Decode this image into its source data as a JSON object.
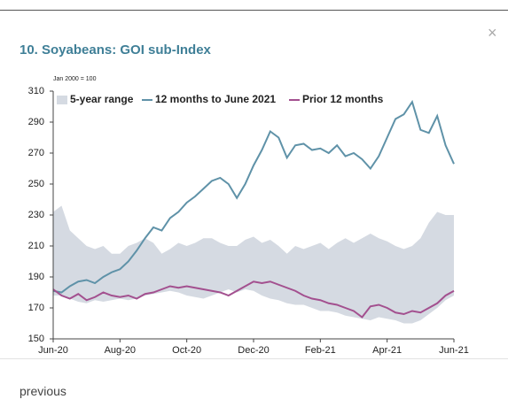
{
  "modal": {
    "close": "×",
    "title": "10. Soyabeans: GOI sub-Index",
    "previous": "previous"
  },
  "chart_data": {
    "type": "line",
    "note": "Jan 2000 = 100",
    "categories": [
      "Jun-20",
      null,
      null,
      null,
      null,
      null,
      null,
      null,
      "Aug-20",
      null,
      null,
      null,
      null,
      null,
      null,
      null,
      "Oct-20",
      null,
      null,
      null,
      null,
      null,
      null,
      null,
      "Dec-20",
      null,
      null,
      null,
      null,
      null,
      null,
      null,
      "Feb-21",
      null,
      null,
      null,
      null,
      null,
      null,
      null,
      "Apr-21",
      null,
      null,
      null,
      null,
      null,
      null,
      null,
      "Jun-21"
    ],
    "ylim": [
      150,
      310
    ],
    "yticks": [
      150,
      170,
      190,
      210,
      230,
      250,
      270,
      290,
      310
    ],
    "series": [
      {
        "name": "5-year range",
        "color": "#d5dae2",
        "high": [
          232,
          236,
          220,
          215,
          210,
          208,
          210,
          205,
          205,
          210,
          212,
          215,
          212,
          205,
          208,
          212,
          210,
          212,
          215,
          215,
          212,
          210,
          210,
          214,
          216,
          212,
          214,
          210,
          205,
          210,
          208,
          210,
          212,
          208,
          212,
          215,
          212,
          215,
          218,
          215,
          213,
          210,
          208,
          210,
          215,
          225,
          232,
          230,
          230
        ],
        "low": [
          178,
          178,
          176,
          174,
          173,
          175,
          174,
          175,
          176,
          175,
          176,
          178,
          179,
          180,
          181,
          180,
          178,
          177,
          176,
          178,
          180,
          182,
          180,
          182,
          181,
          178,
          176,
          175,
          173,
          172,
          172,
          170,
          168,
          168,
          167,
          165,
          164,
          163,
          162,
          164,
          163,
          162,
          160,
          160,
          162,
          166,
          170,
          175,
          178
        ]
      },
      {
        "name": "12 months to June 2021",
        "color": "#5f92a8",
        "values": [
          181,
          180,
          184,
          187,
          188,
          186,
          190,
          193,
          195,
          200,
          207,
          215,
          222,
          220,
          228,
          232,
          238,
          242,
          247,
          252,
          254,
          250,
          241,
          250,
          262,
          272,
          284,
          280,
          267,
          275,
          276,
          272,
          273,
          270,
          275,
          268,
          270,
          266,
          260,
          268,
          280,
          292,
          295,
          303,
          285,
          283,
          294,
          275,
          263
        ]
      },
      {
        "name": "Prior 12 months",
        "color": "#a3508f",
        "values": [
          182,
          178,
          176,
          179,
          175,
          177,
          180,
          178,
          177,
          178,
          176,
          179,
          180,
          182,
          184,
          183,
          184,
          183,
          182,
          181,
          180,
          178,
          181,
          184,
          187,
          186,
          187,
          185,
          183,
          181,
          178,
          176,
          175,
          173,
          172,
          170,
          168,
          164,
          171,
          172,
          170,
          167,
          166,
          168,
          167,
          170,
          173,
          178,
          181
        ]
      }
    ]
  }
}
